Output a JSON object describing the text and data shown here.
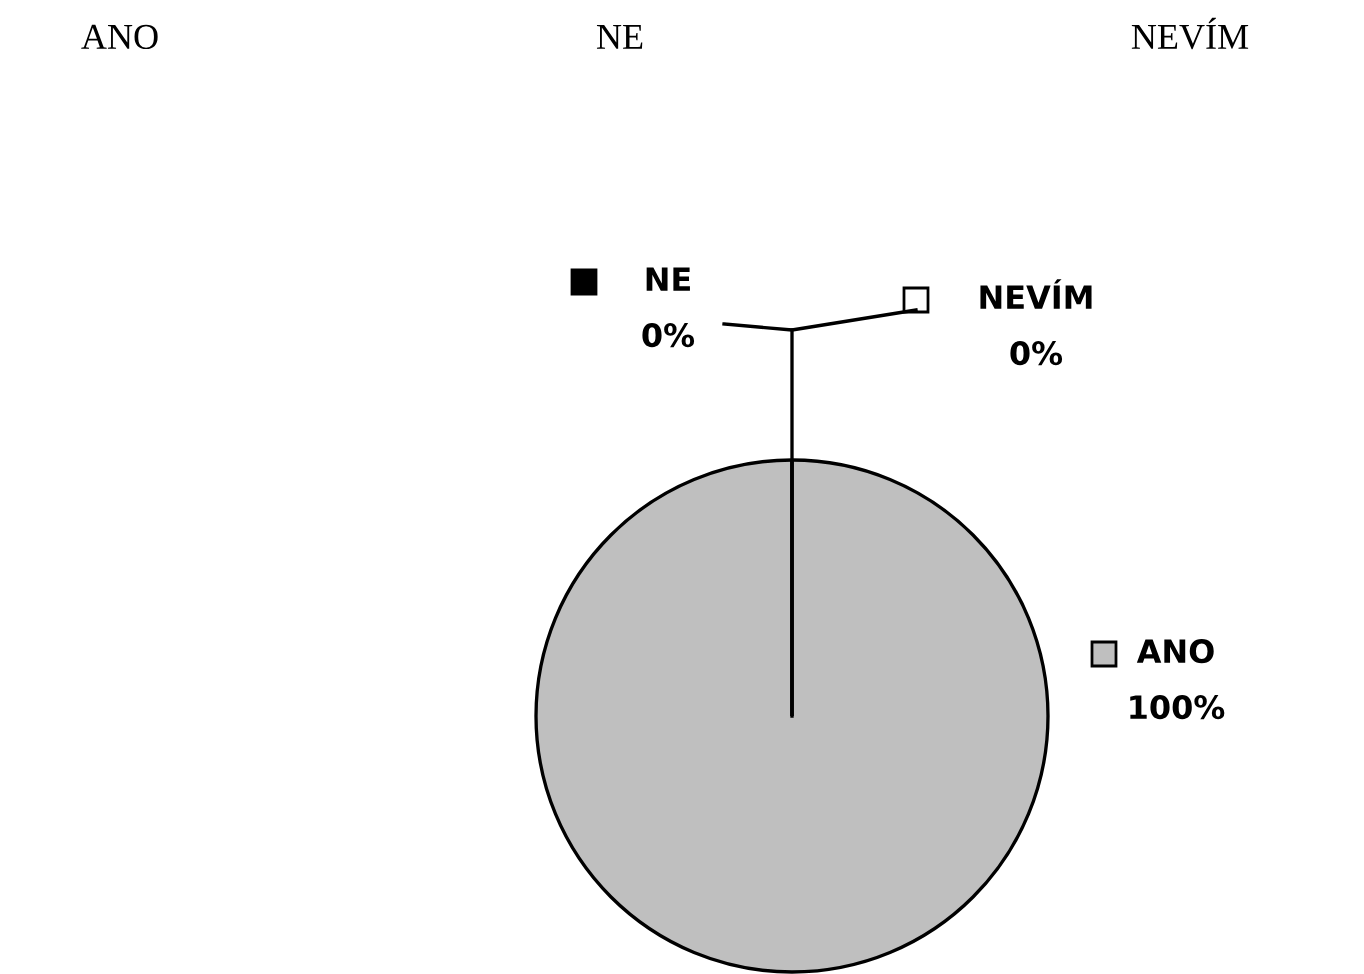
{
  "chart_data": {
    "type": "pie",
    "categories": [
      "ANO",
      "NE",
      "NEVÍM"
    ],
    "values": [
      100,
      0,
      0
    ],
    "colors": [
      "#bfbfbf",
      "#000000",
      "#ffffff"
    ],
    "value_labels": [
      "100%",
      "0%",
      "0%"
    ],
    "legend": "right",
    "annotations": [
      "ANO",
      "NE",
      "NEVÍM"
    ]
  }
}
